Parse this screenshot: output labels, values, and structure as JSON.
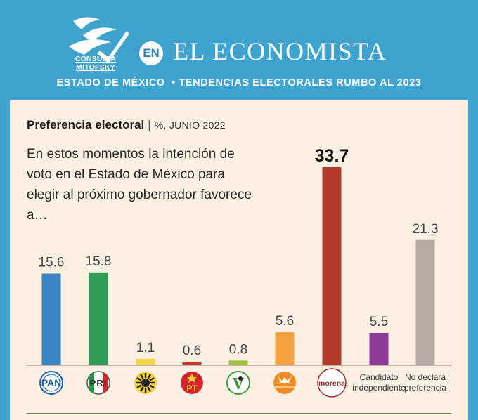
{
  "header": {
    "logo_text": "CONSULTA MITOFSKY",
    "badge": "EN",
    "publication": "EL ECONOMISTA",
    "subtitle": "ESTADO DE MÉXICO  • TENDENCIAS ELECTORALES RUMBO AL 2023"
  },
  "colors": {
    "banner": "#3ea3cf",
    "panel": "#fbf0e2"
  },
  "chart_data": {
    "type": "bar",
    "title": "Preferencia electoral",
    "unit_label": "%, JUNIO 2022",
    "question": "En estos momentos la intención de voto en el Estado de México para elegir al próximo gobernador favorece a…",
    "categories": [
      "PAN",
      "PRI",
      "PRD",
      "PT",
      "PVEM",
      "MOVIMIENTO CIUDADANO",
      "morena",
      "Candidato independiente",
      "No declara preferencia"
    ],
    "values": [
      15.6,
      15.8,
      1.1,
      0.6,
      0.8,
      5.6,
      33.7,
      5.5,
      21.3
    ],
    "value_labels": [
      "15.6",
      "15.8",
      "1.1",
      "0.6",
      "0.8",
      "5.6",
      "33.7",
      "5.5",
      "21.3"
    ],
    "colors": [
      "#3a86c3",
      "#2e9d56",
      "#f2d64b",
      "#c9342f",
      "#9dc43f",
      "#f3a23c",
      "#b23a2a",
      "#8e3d97",
      "#b5aaa4"
    ],
    "highlight_index": 6,
    "ylim": [
      0,
      33.7
    ],
    "text_labels": [
      {
        "index": 7,
        "lines": [
          "Candidato",
          "independiente"
        ]
      },
      {
        "index": 8,
        "lines": [
          "No declara",
          "preferencia"
        ]
      }
    ],
    "icons": [
      {
        "index": 0,
        "name": "pan-logo-icon",
        "text": "PAN"
      },
      {
        "index": 1,
        "name": "pri-logo-icon",
        "text": "PRI"
      },
      {
        "index": 2,
        "name": "prd-logo-icon"
      },
      {
        "index": 3,
        "name": "pt-logo-icon",
        "text": "PT"
      },
      {
        "index": 4,
        "name": "pvem-logo-icon",
        "text": "V"
      },
      {
        "index": 5,
        "name": "movimiento-ciudadano-logo-icon",
        "text": "MOVIMIENTO CIUDADANO"
      },
      {
        "index": 6,
        "name": "morena-logo-icon",
        "text": "morena"
      }
    ]
  }
}
